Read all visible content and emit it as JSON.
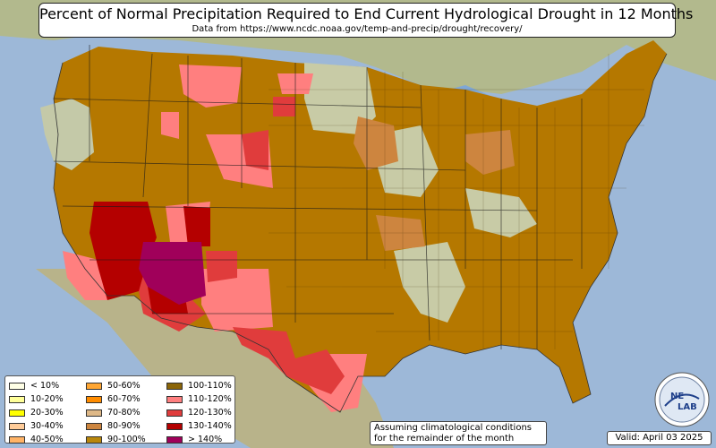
{
  "header": {
    "title": "Percent of Normal Precipitation Required to End Current Hydrological Drought in 12 Months",
    "subtitle": "Data from https://www.ncdc.noaa.gov/temp-and-precip/drought/recovery/"
  },
  "legend": {
    "items": [
      {
        "label": "< 10%",
        "color": "#ffffe6"
      },
      {
        "label": "10-20%",
        "color": "#ffff99"
      },
      {
        "label": "20-30%",
        "color": "#ffff00"
      },
      {
        "label": "30-40%",
        "color": "#ffcc99"
      },
      {
        "label": "40-50%",
        "color": "#ffb366"
      },
      {
        "label": "50-60%",
        "color": "#ffa633"
      },
      {
        "label": "60-70%",
        "color": "#ff8c00"
      },
      {
        "label": "70-80%",
        "color": "#deb887"
      },
      {
        "label": "80-90%",
        "color": "#cd853f"
      },
      {
        "label": "90-100%",
        "color": "#b8860b"
      },
      {
        "label": "100-110%",
        "color": "#8b6508"
      },
      {
        "label": "110-120%",
        "color": "#ff7f7f"
      },
      {
        "label": "120-130%",
        "color": "#e03c3c"
      },
      {
        "label": "130-140%",
        "color": "#b40000"
      },
      {
        "label": "> 140%",
        "color": "#a0005a"
      }
    ]
  },
  "note": {
    "line1": "Assuming climatological conditions",
    "line2": "for the remainder of the month"
  },
  "valid_date": "Valid: April 03 2025",
  "logo": {
    "text_top": "NE",
    "text_bottom": "LAB",
    "icon": "nws-lab-logo"
  },
  "colors": {
    "ocean": "#9db8d8",
    "land_base": "#b4b08a",
    "no_drought": "#c9c9a7",
    "drought_main": "#b57800"
  }
}
